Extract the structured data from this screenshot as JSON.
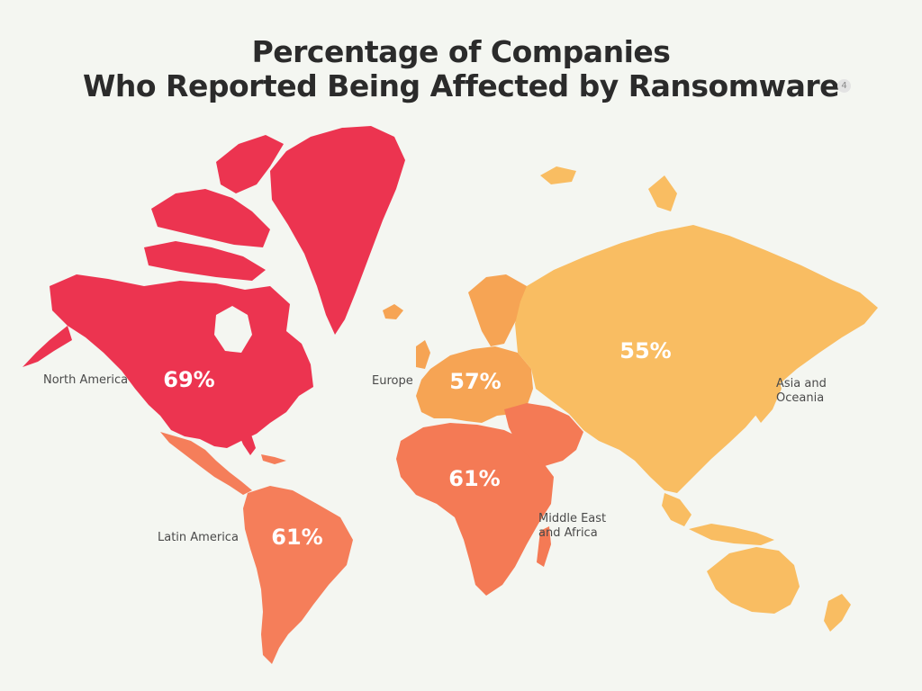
{
  "title": {
    "line1": "Percentage of Companies",
    "line2": "Who Reported Being Affected by Ransomware"
  },
  "badge": "4",
  "colors": {
    "background": "#f4f6f1",
    "north_america": "#ec3450",
    "latin_america": "#f57e5a",
    "europe": "#f6a454",
    "middle_east_africa": "#f47a55",
    "asia_oceania": "#f9bd62"
  },
  "regions": {
    "north_america": {
      "label": "North America",
      "value": "69%"
    },
    "latin_america": {
      "label": "Latin America",
      "value": "61%"
    },
    "europe": {
      "label": "Europe",
      "value": "57%"
    },
    "middle_east_africa": {
      "label_line1": "Middle East",
      "label_line2": "and Africa",
      "value": "61%"
    },
    "asia_oceania": {
      "label_line1": "Asia and",
      "label_line2": "Oceania",
      "value": "55%"
    }
  }
}
